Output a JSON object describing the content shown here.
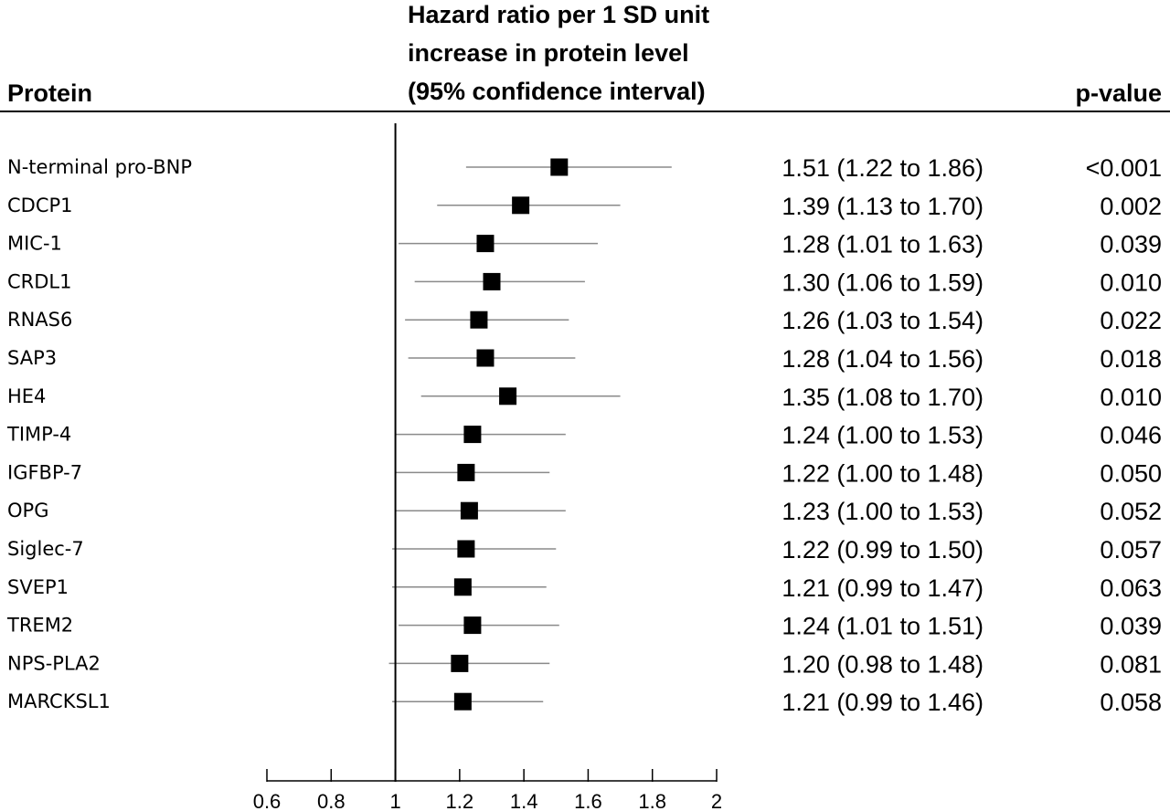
{
  "chart_data": {
    "type": "forest",
    "headers": {
      "protein": "Protein",
      "hr_lines": [
        "Hazard ratio per 1 SD unit",
        "increase in protein level",
        "(95% confidence interval)"
      ],
      "pvalue": "p-value"
    },
    "reference_line": 1,
    "xlim": [
      0.6,
      2
    ],
    "x_ticks": [
      0.6,
      0.8,
      1,
      1.2,
      1.4,
      1.6,
      1.8,
      2
    ],
    "x_tick_labels": [
      "0.6",
      "0.8",
      "1",
      "1.2",
      "1.4",
      "1.6",
      "1.8",
      "2"
    ],
    "rows": [
      {
        "protein": "N-terminal pro-BNP",
        "hr": 1.51,
        "lo": 1.22,
        "hi": 1.86,
        "ci_text": "1.51 (1.22 to 1.86)",
        "p": "<0.001"
      },
      {
        "protein": "CDCP1",
        "hr": 1.39,
        "lo": 1.13,
        "hi": 1.7,
        "ci_text": "1.39 (1.13 to 1.70)",
        "p": "0.002"
      },
      {
        "protein": "MIC-1",
        "hr": 1.28,
        "lo": 1.01,
        "hi": 1.63,
        "ci_text": "1.28 (1.01 to 1.63)",
        "p": "0.039"
      },
      {
        "protein": "CRDL1",
        "hr": 1.3,
        "lo": 1.06,
        "hi": 1.59,
        "ci_text": "1.30 (1.06 to 1.59)",
        "p": "0.010"
      },
      {
        "protein": "RNAS6",
        "hr": 1.26,
        "lo": 1.03,
        "hi": 1.54,
        "ci_text": "1.26 (1.03 to 1.54)",
        "p": "0.022"
      },
      {
        "protein": "SAP3",
        "hr": 1.28,
        "lo": 1.04,
        "hi": 1.56,
        "ci_text": "1.28 (1.04 to 1.56)",
        "p": "0.018"
      },
      {
        "protein": "HE4",
        "hr": 1.35,
        "lo": 1.08,
        "hi": 1.7,
        "ci_text": "1.35 (1.08 to 1.70)",
        "p": "0.010"
      },
      {
        "protein": "TIMP-4",
        "hr": 1.24,
        "lo": 1.0,
        "hi": 1.53,
        "ci_text": "1.24 (1.00 to 1.53)",
        "p": "0.046"
      },
      {
        "protein": "IGFBP-7",
        "hr": 1.22,
        "lo": 1.0,
        "hi": 1.48,
        "ci_text": "1.22 (1.00 to 1.48)",
        "p": "0.050"
      },
      {
        "protein": "OPG",
        "hr": 1.23,
        "lo": 1.0,
        "hi": 1.53,
        "ci_text": "1.23 (1.00 to 1.53)",
        "p": "0.052"
      },
      {
        "protein": "Siglec-7",
        "hr": 1.22,
        "lo": 0.99,
        "hi": 1.5,
        "ci_text": "1.22 (0.99 to 1.50)",
        "p": "0.057"
      },
      {
        "protein": "SVEP1",
        "hr": 1.21,
        "lo": 0.99,
        "hi": 1.47,
        "ci_text": "1.21 (0.99 to 1.47)",
        "p": "0.063"
      },
      {
        "protein": "TREM2",
        "hr": 1.24,
        "lo": 1.01,
        "hi": 1.51,
        "ci_text": "1.24 (1.01 to 1.51)",
        "p": "0.039"
      },
      {
        "protein": "NPS-PLA2",
        "hr": 1.2,
        "lo": 0.98,
        "hi": 1.48,
        "ci_text": "1.20 (0.98 to 1.48)",
        "p": "0.081"
      },
      {
        "protein": "MARCKSL1",
        "hr": 1.21,
        "lo": 0.99,
        "hi": 1.46,
        "ci_text": "1.21 (0.99 to 1.46)",
        "p": "0.058"
      }
    ]
  }
}
